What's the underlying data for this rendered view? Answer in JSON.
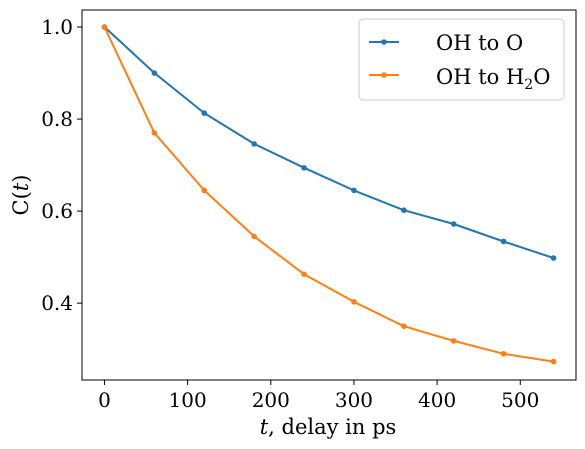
{
  "chart_data": {
    "type": "line",
    "xlabel_var": "t",
    "xlabel_rest": ", delay in ps",
    "ylabel_prefix": "C(",
    "ylabel_var": "t",
    "ylabel_suffix": ")",
    "xlim": [
      -27,
      567
    ],
    "ylim": [
      0.233,
      1.037
    ],
    "xticks": [
      0,
      100,
      200,
      300,
      400,
      500
    ],
    "yticks": [
      0.4,
      0.6,
      0.8,
      1.0
    ],
    "xtick_labels": [
      "0",
      "100",
      "200",
      "300",
      "400",
      "500"
    ],
    "ytick_labels": [
      "0.4",
      "0.6",
      "0.8",
      "1.0"
    ],
    "grid": false,
    "legend_position": "top-right",
    "series": [
      {
        "name": "OH to O",
        "legend_main": "OH to O",
        "legend_sub": "",
        "legend_tail": "",
        "color": "#1f77b4",
        "x": [
          0,
          60,
          120,
          180,
          240,
          300,
          360,
          420,
          480,
          540
        ],
        "y": [
          1.0,
          0.9,
          0.813,
          0.746,
          0.694,
          0.645,
          0.602,
          0.572,
          0.534,
          0.498
        ]
      },
      {
        "name": "OH to H2O",
        "legend_main": "OH to H",
        "legend_sub": "2",
        "legend_tail": "O",
        "color": "#ff7f0e",
        "x": [
          0,
          60,
          120,
          180,
          240,
          300,
          360,
          420,
          480,
          540
        ],
        "y": [
          1.0,
          0.77,
          0.645,
          0.545,
          0.463,
          0.403,
          0.35,
          0.318,
          0.29,
          0.273
        ]
      }
    ]
  }
}
